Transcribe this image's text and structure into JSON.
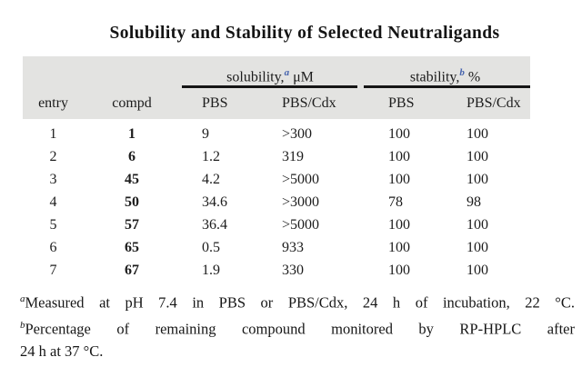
{
  "page": {
    "title": "Solubility and Stability of Selected Neutraligands"
  },
  "table": {
    "groups": {
      "solubility": {
        "label": "solubility,",
        "marker": "a",
        "unit": "μM"
      },
      "stability": {
        "label": "stability,",
        "marker": "b",
        "unit": "%"
      }
    },
    "columns": [
      "entry",
      "compd",
      "PBS",
      "PBS/Cdx",
      "PBS",
      "PBS/Cdx"
    ],
    "rows": [
      [
        "1",
        "1",
        "9",
        ">300",
        "100",
        "100"
      ],
      [
        "2",
        "6",
        "1.2",
        "319",
        "100",
        "100"
      ],
      [
        "3",
        "45",
        "4.2",
        ">5000",
        "100",
        "100"
      ],
      [
        "4",
        "50",
        "34.6",
        ">3000",
        "78",
        "98"
      ],
      [
        "5",
        "57",
        "36.4",
        ">5000",
        "100",
        "100"
      ],
      [
        "6",
        "65",
        "0.5",
        "933",
        "100",
        "100"
      ],
      [
        "7",
        "67",
        "1.9",
        "330",
        "100",
        "100"
      ]
    ]
  },
  "footnotes": {
    "a": {
      "marker": "a",
      "text": "Measured at pH 7.4 in PBS or PBS/Cdx, 24 h of incubation, 22 °C."
    },
    "b": {
      "marker": "b",
      "line1": "Percentage of remaining compound monitored by RP-HPLC after",
      "line2": "24 h at 37 °C."
    }
  },
  "colors": {
    "header_bg": "#e3e3e1",
    "marker_blue": "#4563ae",
    "text": "#1c1c1c"
  }
}
